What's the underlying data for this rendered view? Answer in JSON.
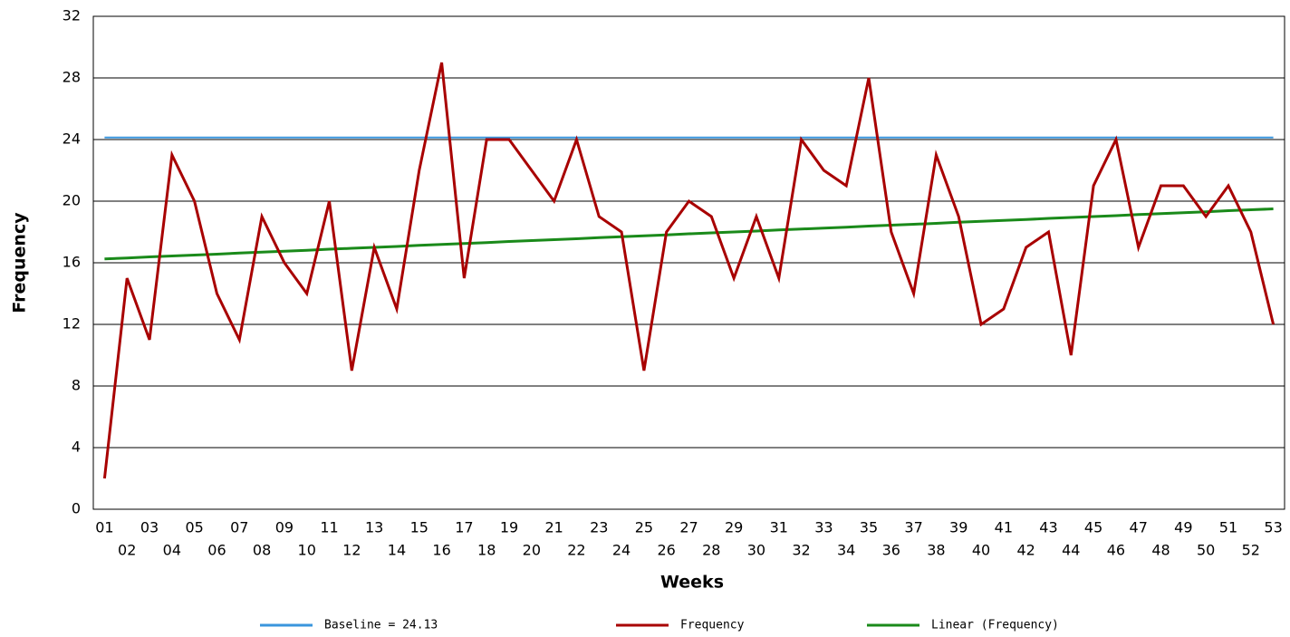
{
  "chart_data": {
    "type": "line",
    "xlabel": "Weeks",
    "ylabel": "Frequency",
    "categories": [
      "01",
      "02",
      "03",
      "04",
      "05",
      "06",
      "07",
      "08",
      "09",
      "10",
      "11",
      "12",
      "13",
      "14",
      "15",
      "16",
      "17",
      "18",
      "19",
      "20",
      "21",
      "22",
      "23",
      "24",
      "25",
      "26",
      "27",
      "28",
      "29",
      "30",
      "31",
      "32",
      "33",
      "34",
      "35",
      "36",
      "37",
      "38",
      "39",
      "40",
      "41",
      "42",
      "43",
      "44",
      "45",
      "46",
      "47",
      "48",
      "49",
      "50",
      "51",
      "52",
      "53"
    ],
    "series": [
      {
        "name": "Baseline = 24.13",
        "color": "#3a96dd",
        "values": [
          24.13,
          24.13,
          24.13,
          24.13,
          24.13,
          24.13,
          24.13,
          24.13,
          24.13,
          24.13,
          24.13,
          24.13,
          24.13,
          24.13,
          24.13,
          24.13,
          24.13,
          24.13,
          24.13,
          24.13,
          24.13,
          24.13,
          24.13,
          24.13,
          24.13,
          24.13,
          24.13,
          24.13,
          24.13,
          24.13,
          24.13,
          24.13,
          24.13,
          24.13,
          24.13,
          24.13,
          24.13,
          24.13,
          24.13,
          24.13,
          24.13,
          24.13,
          24.13,
          24.13,
          24.13,
          24.13,
          24.13,
          24.13,
          24.13,
          24.13,
          24.13,
          24.13,
          24.13
        ]
      },
      {
        "name": "Frequency",
        "color": "#a80000",
        "values": [
          2,
          15,
          11,
          23,
          20,
          14,
          11,
          19,
          16,
          14,
          20,
          9,
          17,
          13,
          22,
          29,
          15,
          24,
          24,
          22,
          20,
          24,
          19,
          18,
          9,
          18,
          20,
          19,
          15,
          19,
          15,
          24,
          22,
          21,
          28,
          18,
          14,
          23,
          19,
          12,
          13,
          17,
          18,
          10,
          21,
          24,
          17,
          21,
          21,
          19,
          21,
          18,
          12
        ]
      },
      {
        "name": "Linear (Frequency)",
        "color": "#1a8a1a",
        "values": [
          16.25,
          16.31,
          16.38,
          16.44,
          16.5,
          16.56,
          16.63,
          16.69,
          16.75,
          16.81,
          16.88,
          16.94,
          17,
          17.06,
          17.13,
          17.19,
          17.25,
          17.31,
          17.38,
          17.44,
          17.5,
          17.56,
          17.63,
          17.69,
          17.75,
          17.81,
          17.88,
          17.94,
          18,
          18.06,
          18.13,
          18.19,
          18.25,
          18.31,
          18.38,
          18.44,
          18.5,
          18.56,
          18.63,
          18.69,
          18.75,
          18.81,
          18.88,
          18.94,
          19,
          19.06,
          19.13,
          19.19,
          19.25,
          19.31,
          19.38,
          19.44,
          19.5
        ]
      }
    ],
    "ylim": [
      0,
      32
    ],
    "yticks": [
      0,
      4,
      8,
      12,
      16,
      20,
      24,
      28,
      32
    ],
    "grid": true
  }
}
